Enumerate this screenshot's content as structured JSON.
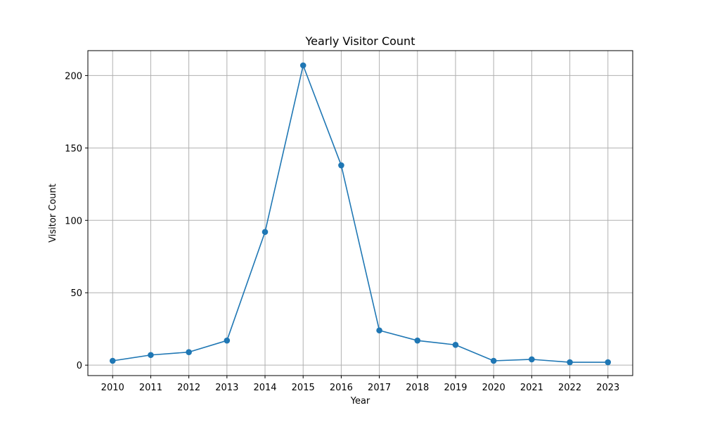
{
  "chart_data": {
    "type": "line",
    "title": "Yearly Visitor Count",
    "xlabel": "Year",
    "ylabel": "Visitor Count",
    "categories": [
      "2010",
      "2011",
      "2012",
      "2013",
      "2014",
      "2015",
      "2016",
      "2017",
      "2018",
      "2019",
      "2020",
      "2021",
      "2022",
      "2023"
    ],
    "values": [
      3,
      7,
      9,
      17,
      92,
      207,
      138,
      24,
      17,
      14,
      3,
      4,
      2,
      2
    ],
    "yticks": [
      0,
      50,
      100,
      150,
      200
    ],
    "ylim": [
      -7.2,
      217.2
    ],
    "grid": true,
    "legend": "none",
    "color": "#1f77b4"
  }
}
